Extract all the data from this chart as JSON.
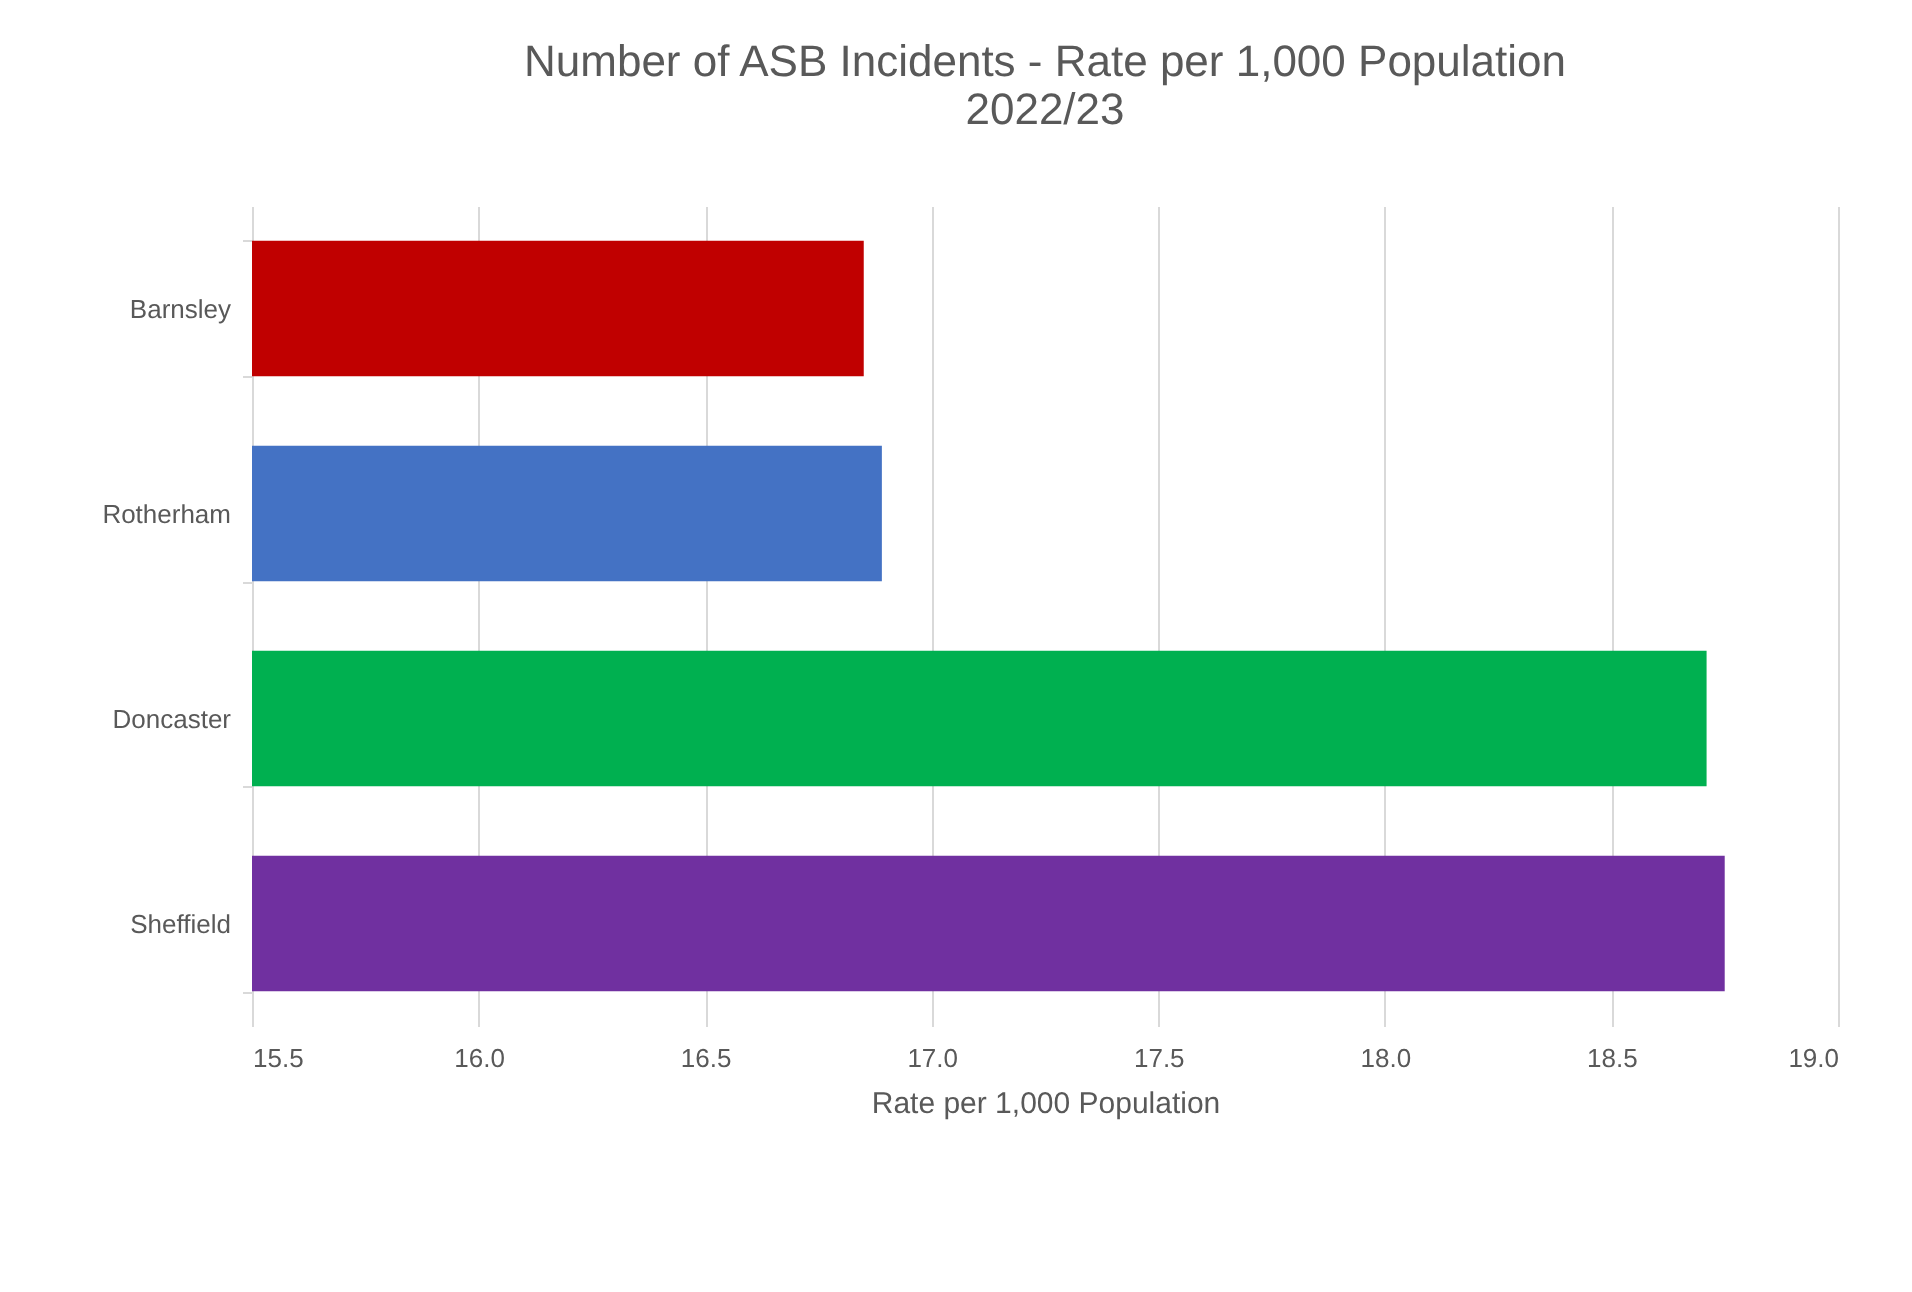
{
  "chart_data": {
    "type": "bar",
    "orientation": "horizontal",
    "title": "Number of ASB Incidents - Rate per 1,000 Population 2022/23",
    "xlabel": "Rate per 1,000 Population",
    "categories": [
      "Barnsley",
      "Rotherham",
      "Doncaster",
      "Sheffield"
    ],
    "values": [
      16.85,
      16.89,
      18.71,
      18.75
    ],
    "colors": [
      "#c00000",
      "#4472c4",
      "#00b050",
      "#7030a0"
    ],
    "xlim": [
      15.5,
      19.0
    ],
    "xticks": [
      {
        "value": 15.5,
        "label": "15.5"
      },
      {
        "value": 16.0,
        "label": "16.0"
      },
      {
        "value": 16.5,
        "label": "16.5"
      },
      {
        "value": 17.0,
        "label": "17.0"
      },
      {
        "value": 17.5,
        "label": "17.5"
      },
      {
        "value": 18.0,
        "label": "18.0"
      },
      {
        "value": 18.5,
        "label": "18.5"
      },
      {
        "value": 19.0,
        "label": "19.0"
      }
    ],
    "grid": "x"
  }
}
